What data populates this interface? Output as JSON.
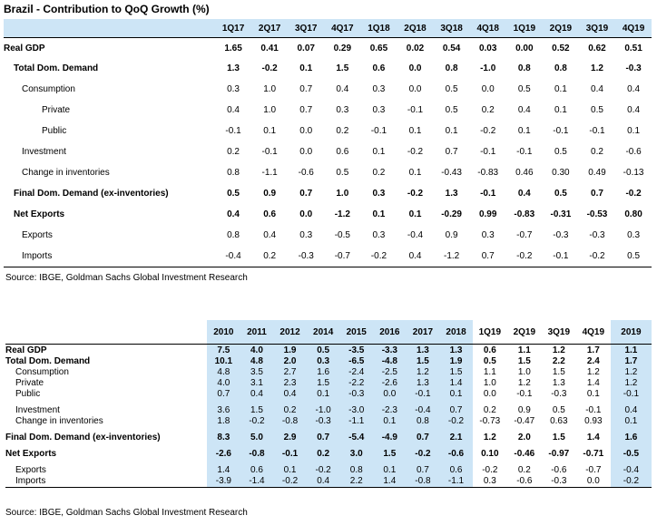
{
  "quarterly": {
    "title": "Brazil - Contribution to QoQ Growth (%)",
    "columns": [
      "1Q17",
      "2Q17",
      "3Q17",
      "4Q17",
      "1Q18",
      "2Q18",
      "3Q18",
      "4Q18",
      "1Q19",
      "2Q19",
      "3Q19",
      "4Q19"
    ],
    "rows": [
      {
        "label": "Real GDP",
        "values": [
          "1.65",
          "0.41",
          "0.07",
          "0.29",
          "0.65",
          "0.02",
          "0.54",
          "0.03",
          "0.00",
          "0.52",
          "0.62",
          "0.51"
        ]
      },
      {
        "label": "Total Dom. Demand",
        "values": [
          "1.3",
          "-0.2",
          "0.1",
          "1.5",
          "0.6",
          "0.0",
          "0.8",
          "-1.0",
          "0.8",
          "0.8",
          "1.2",
          "-0.3"
        ]
      },
      {
        "label": "Consumption",
        "values": [
          "0.3",
          "1.0",
          "0.7",
          "0.4",
          "0.3",
          "0.0",
          "0.5",
          "0.0",
          "0.5",
          "0.1",
          "0.4",
          "0.4"
        ]
      },
      {
        "label": "Private",
        "values": [
          "0.4",
          "1.0",
          "0.7",
          "0.3",
          "0.3",
          "-0.1",
          "0.5",
          "0.2",
          "0.4",
          "0.1",
          "0.5",
          "0.4"
        ]
      },
      {
        "label": "Public",
        "values": [
          "-0.1",
          "0.1",
          "0.0",
          "0.2",
          "-0.1",
          "0.1",
          "0.1",
          "-0.2",
          "0.1",
          "-0.1",
          "-0.1",
          "0.1"
        ]
      },
      {
        "label": "Investment",
        "values": [
          "0.2",
          "-0.1",
          "0.0",
          "0.6",
          "0.1",
          "-0.2",
          "0.7",
          "-0.1",
          "-0.1",
          "0.5",
          "0.2",
          "-0.6"
        ]
      },
      {
        "label": "Change in inventories",
        "values": [
          "0.8",
          "-1.1",
          "-0.6",
          "0.5",
          "0.2",
          "0.1",
          "-0.43",
          "-0.83",
          "0.46",
          "0.30",
          "0.49",
          "-0.13"
        ]
      },
      {
        "label": "Final Dom. Demand (ex-inventories)",
        "values": [
          "0.5",
          "0.9",
          "0.7",
          "1.0",
          "0.3",
          "-0.2",
          "1.3",
          "-0.1",
          "0.4",
          "0.5",
          "0.7",
          "-0.2"
        ]
      },
      {
        "label": "Net Exports",
        "values": [
          "0.4",
          "0.6",
          "0.0",
          "-1.2",
          "0.1",
          "0.1",
          "-0.29",
          "0.99",
          "-0.83",
          "-0.31",
          "-0.53",
          "0.80"
        ]
      },
      {
        "label": "Exports",
        "values": [
          "0.8",
          "0.4",
          "0.3",
          "-0.5",
          "0.3",
          "-0.4",
          "0.9",
          "0.3",
          "-0.7",
          "-0.3",
          "-0.3",
          "0.3"
        ]
      },
      {
        "label": "Imports",
        "values": [
          "-0.4",
          "0.2",
          "-0.3",
          "-0.7",
          "-0.2",
          "0.4",
          "-1.2",
          "0.7",
          "-0.2",
          "-0.1",
          "-0.2",
          "0.5"
        ]
      }
    ],
    "source": "Source: IBGE, Goldman Sachs Global Investment Research"
  },
  "annual": {
    "columns": [
      "2010",
      "2011",
      "2012",
      "2014",
      "2015",
      "2016",
      "2017",
      "2018",
      "1Q19",
      "2Q19",
      "3Q19",
      "4Q19",
      "2019"
    ],
    "rows": [
      {
        "label": "Real GDP",
        "values": [
          "7.5",
          "4.0",
          "1.9",
          "0.5",
          "-3.5",
          "-3.3",
          "1.3",
          "1.3",
          "0.6",
          "1.1",
          "1.2",
          "1.7",
          "1.1"
        ]
      },
      {
        "label": "Total Dom. Demand",
        "values": [
          "10.1",
          "4.8",
          "2.0",
          "0.3",
          "-6.5",
          "-4.8",
          "1.5",
          "1.9",
          "0.5",
          "1.5",
          "2.2",
          "2.4",
          "1.7"
        ]
      },
      {
        "label": "Consumption",
        "values": [
          "4.8",
          "3.5",
          "2.7",
          "1.6",
          "-2.4",
          "-2.5",
          "1.2",
          "1.5",
          "1.1",
          "1.0",
          "1.5",
          "1.2",
          "1.2"
        ]
      },
      {
        "label": "Private",
        "values": [
          "4.0",
          "3.1",
          "2.3",
          "1.5",
          "-2.2",
          "-2.6",
          "1.3",
          "1.4",
          "1.0",
          "1.2",
          "1.3",
          "1.4",
          "1.2"
        ]
      },
      {
        "label": "Public",
        "values": [
          "0.7",
          "0.4",
          "0.4",
          "0.1",
          "-0.3",
          "0.0",
          "-0.1",
          "0.1",
          "0.0",
          "-0.1",
          "-0.3",
          "0.1",
          "-0.1"
        ]
      },
      {
        "label": "Investment",
        "values": [
          "3.6",
          "1.5",
          "0.2",
          "-1.0",
          "-3.0",
          "-2.3",
          "-0.4",
          "0.7",
          "0.2",
          "0.9",
          "0.5",
          "-0.1",
          "0.4"
        ]
      },
      {
        "label": "Change in inventories",
        "values": [
          "1.8",
          "-0.2",
          "-0.8",
          "-0.3",
          "-1.1",
          "0.1",
          "0.8",
          "-0.2",
          "-0.73",
          "-0.47",
          "0.63",
          "0.93",
          "0.1"
        ]
      },
      {
        "label": "Final Dom. Demand (ex-inventories)",
        "values": [
          "8.3",
          "5.0",
          "2.9",
          "0.7",
          "-5.4",
          "-4.9",
          "0.7",
          "2.1",
          "1.2",
          "2.0",
          "1.5",
          "1.4",
          "1.6"
        ]
      },
      {
        "label": "Net Exports",
        "values": [
          "-2.6",
          "-0.8",
          "-0.1",
          "0.2",
          "3.0",
          "1.5",
          "-0.2",
          "-0.6",
          "0.10",
          "-0.46",
          "-0.97",
          "-0.71",
          "-0.5"
        ]
      },
      {
        "label": "Exports",
        "values": [
          "1.4",
          "0.6",
          "0.1",
          "-0.2",
          "0.8",
          "0.1",
          "0.7",
          "0.6",
          "-0.2",
          "0.2",
          "-0.6",
          "-0.7",
          "-0.4"
        ]
      },
      {
        "label": "Imports",
        "values": [
          "-3.9",
          "-1.4",
          "-0.2",
          "0.4",
          "2.2",
          "1.4",
          "-0.8",
          "-1.1",
          "0.3",
          "-0.6",
          "-0.3",
          "0.0",
          "-0.2"
        ]
      }
    ],
    "source": "Source: IBGE, Goldman Sachs Global Investment Research"
  }
}
